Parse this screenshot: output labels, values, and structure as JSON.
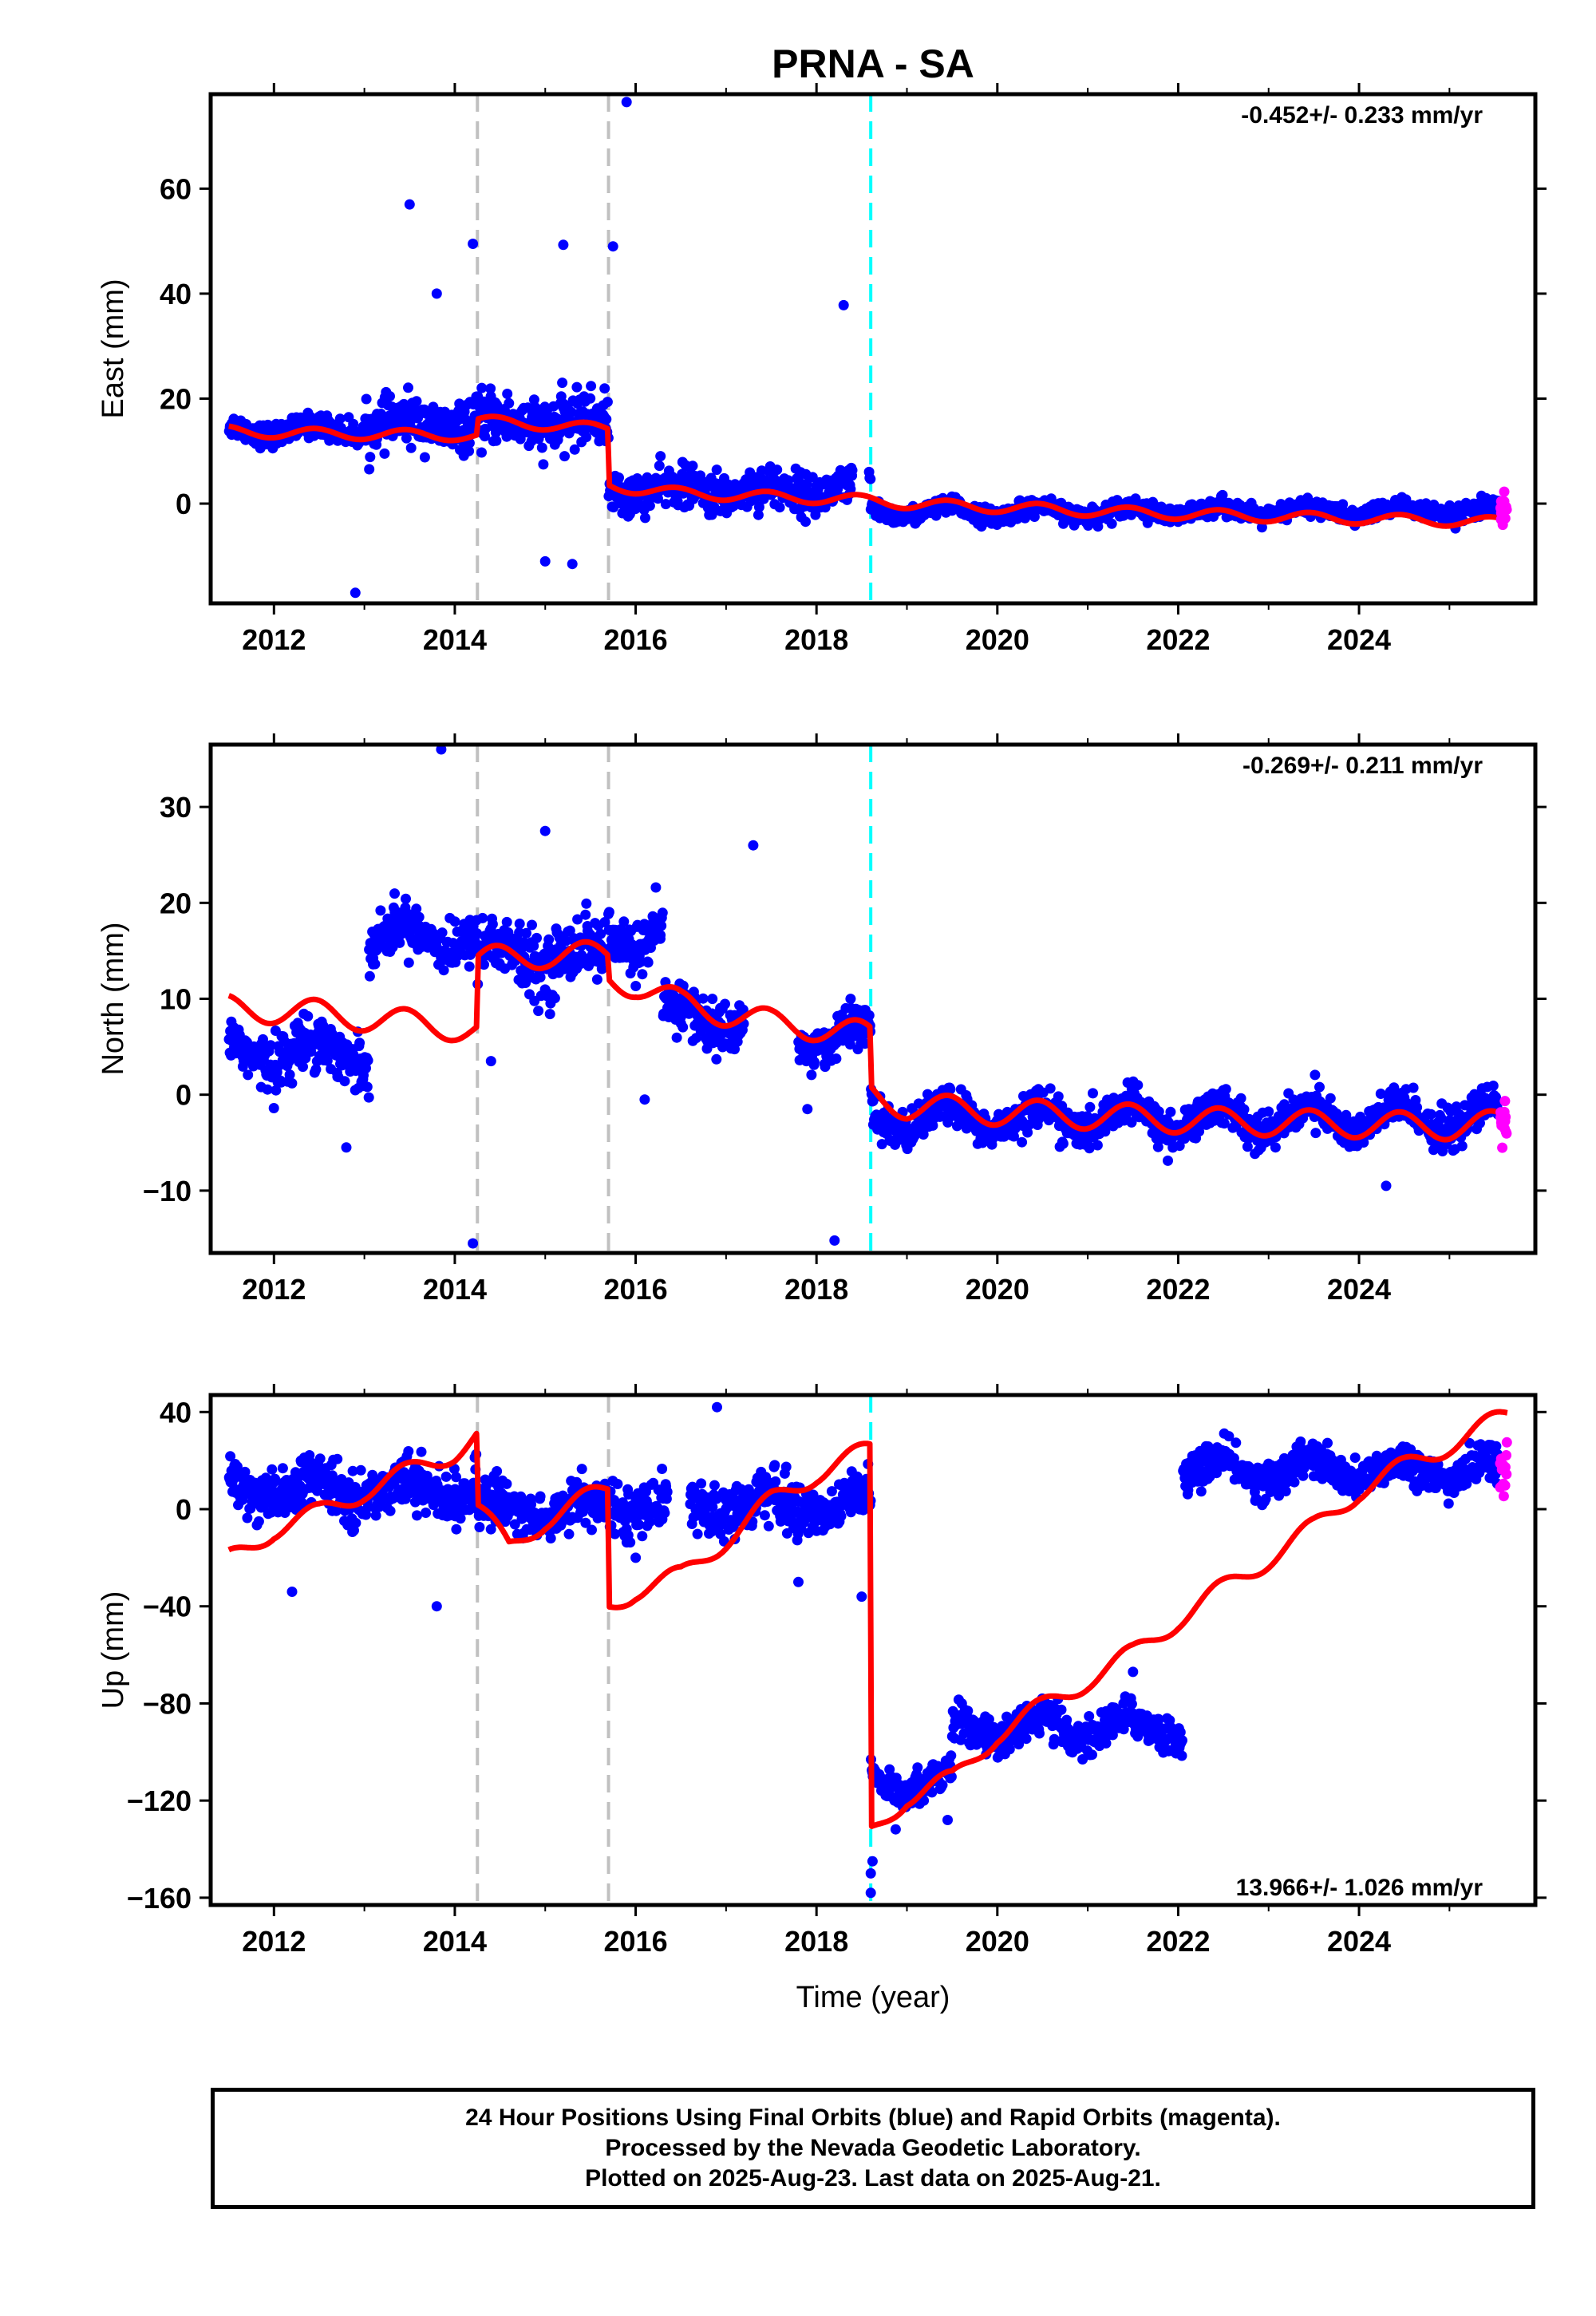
{
  "title": "PRNA - SA",
  "colors": {
    "final_orbits": "#0000ff",
    "rapid_orbits": "#ff00ff",
    "model": "#ff0000",
    "equipment_change": "#c0c0c0",
    "event": "#00ffff"
  },
  "x_axis": {
    "label": "Time (year)",
    "range": [
      2011.3,
      2025.95
    ],
    "ticks": [
      "2012",
      "2014",
      "2016",
      "2018",
      "2020",
      "2022",
      "2024"
    ]
  },
  "markers": {
    "equipment_changes": [
      2014.25,
      2015.7
    ],
    "events": [
      2018.6
    ]
  },
  "chart_data": [
    {
      "type": "scatter",
      "component": "east",
      "ylabel": "East (mm)",
      "ylim": [
        -19,
        78
      ],
      "yticks": [
        "60",
        "40",
        "20",
        "0"
      ],
      "yticks_values": [
        60,
        40,
        20,
        0
      ],
      "rate_text": "-0.452+/- 0.233 mm/yr",
      "rate_position": "top-right",
      "series": [
        {
          "name": "Final Orbits",
          "color": "blue",
          "points": "dense daily positions 2011.5–2025.55"
        },
        {
          "name": "Rapid Orbits",
          "color": "magenta",
          "points": "2025.55–2025.64"
        }
      ],
      "model": [
        [
          2011.5,
          13.8
        ],
        [
          2012.0,
          13.5
        ],
        [
          2012.5,
          13.3
        ],
        [
          2013.0,
          13.2
        ],
        [
          2013.5,
          13.1
        ],
        [
          2014.0,
          13.0
        ],
        [
          2014.24,
          12.8
        ],
        [
          2014.26,
          15.8
        ],
        [
          2015.0,
          15.0
        ],
        [
          2015.69,
          14.2
        ],
        [
          2015.71,
          3.5
        ],
        [
          2016.0,
          2.8
        ],
        [
          2016.5,
          2.0
        ],
        [
          2017.0,
          1.6
        ],
        [
          2017.5,
          1.3
        ],
        [
          2018.0,
          1.0
        ],
        [
          2018.6,
          0.6
        ],
        [
          2019.0,
          0.0
        ],
        [
          2019.5,
          -0.4
        ],
        [
          2020.0,
          -0.7
        ],
        [
          2020.5,
          -1.0
        ],
        [
          2021.0,
          -1.4
        ],
        [
          2021.5,
          -1.7
        ],
        [
          2022.0,
          -2.0
        ],
        [
          2022.5,
          -2.2
        ],
        [
          2023.0,
          -2.5
        ],
        [
          2023.5,
          -2.7
        ],
        [
          2024.0,
          -2.9
        ],
        [
          2024.5,
          -3.1
        ],
        [
          2025.0,
          -3.3
        ],
        [
          2025.64,
          -3.6
        ]
      ],
      "seasonal_amplitude": 1.0,
      "scatter_segments": [
        {
          "start": 2011.5,
          "end": 2013.0,
          "mean": 14.0,
          "scatter": 2.0
        },
        {
          "start": 2013.0,
          "end": 2014.25,
          "mean": 15.0,
          "scatter": 4.0
        },
        {
          "start": 2014.25,
          "end": 2015.7,
          "mean": 15.5,
          "scatter": 4.5
        },
        {
          "start": 2015.7,
          "end": 2018.6,
          "mean": 2.5,
          "scatter": 3.5
        },
        {
          "start": 2018.6,
          "end": 2025.55,
          "mean": -1.5,
          "scatter": 1.5
        }
      ],
      "outliers": [
        [
          2012.9,
          -17
        ],
        [
          2013.5,
          57
        ],
        [
          2013.8,
          40
        ],
        [
          2014.2,
          49.5
        ],
        [
          2015.2,
          49.3
        ],
        [
          2015.75,
          49.0
        ],
        [
          2015.9,
          76.5
        ],
        [
          2018.3,
          37.8
        ],
        [
          2015.0,
          -11
        ],
        [
          2015.3,
          -11.5
        ]
      ],
      "gaps": [
        [
          2018.4,
          2018.58
        ]
      ]
    },
    {
      "type": "scatter",
      "component": "north",
      "ylabel": "North (mm)",
      "ylim": [
        -16.5,
        36.5
      ],
      "yticks": [
        "30",
        "20",
        "10",
        "0",
        "−10"
      ],
      "yticks_values": [
        30,
        20,
        10,
        0,
        -10
      ],
      "rate_text": "-0.269+/- 0.211 mm/yr",
      "rate_position": "top-right",
      "series": [
        {
          "name": "Final Orbits",
          "color": "blue",
          "points": "dense daily positions 2011.5–2025.55"
        },
        {
          "name": "Rapid Orbits",
          "color": "magenta",
          "points": "2025.55–2025.64"
        }
      ],
      "model": [
        [
          2011.5,
          9.0
        ],
        [
          2012.0,
          8.8
        ],
        [
          2012.5,
          8.5
        ],
        [
          2013.0,
          8.0
        ],
        [
          2013.5,
          7.5
        ],
        [
          2014.0,
          7.0
        ],
        [
          2014.24,
          6.7
        ],
        [
          2014.26,
          14.0
        ],
        [
          2015.0,
          14.6
        ],
        [
          2015.69,
          14.5
        ],
        [
          2015.71,
          12.0
        ],
        [
          2016.0,
          11.5
        ],
        [
          2016.5,
          9.5
        ],
        [
          2017.0,
          8.5
        ],
        [
          2017.5,
          7.5
        ],
        [
          2018.0,
          7.0
        ],
        [
          2018.59,
          6.2
        ],
        [
          2018.61,
          0.0
        ],
        [
          2019.0,
          -1.2
        ],
        [
          2019.5,
          -1.5
        ],
        [
          2020.0,
          -1.8
        ],
        [
          2020.5,
          -2.0
        ],
        [
          2021.0,
          -2.2
        ],
        [
          2021.5,
          -2.4
        ],
        [
          2022.0,
          -2.6
        ],
        [
          2022.5,
          -2.8
        ],
        [
          2023.0,
          -2.9
        ],
        [
          2023.5,
          -3.0
        ],
        [
          2024.0,
          -3.1
        ],
        [
          2024.5,
          -3.2
        ],
        [
          2025.0,
          -3.3
        ],
        [
          2025.64,
          -3.0
        ]
      ],
      "seasonal_amplitude": 1.4,
      "scatter_segments": [
        {
          "start": 2011.5,
          "end": 2013.05,
          "mean": 4.5,
          "scatter": 2.5
        },
        {
          "start": 2013.05,
          "end": 2014.25,
          "mean": 16.5,
          "scatter": 2.2
        },
        {
          "start": 2014.25,
          "end": 2015.7,
          "mean": 14.5,
          "scatter": 3.0
        },
        {
          "start": 2015.7,
          "end": 2016.3,
          "mean": 16.5,
          "scatter": 2.5
        },
        {
          "start": 2016.3,
          "end": 2017.2,
          "mean": 8.0,
          "scatter": 2.5
        },
        {
          "start": 2017.8,
          "end": 2018.6,
          "mean": 6.0,
          "scatter": 2.0
        },
        {
          "start": 2018.6,
          "end": 2025.55,
          "mean": -2.5,
          "scatter": 1.8
        }
      ],
      "outliers": [
        [
          2013.85,
          36
        ],
        [
          2014.2,
          -15.5
        ],
        [
          2018.2,
          -15.2
        ],
        [
          2015.0,
          27.5
        ],
        [
          2017.3,
          26.0
        ],
        [
          2012.8,
          -5.5
        ],
        [
          2014.4,
          3.5
        ],
        [
          2016.1,
          -0.5
        ],
        [
          2017.9,
          -1.5
        ],
        [
          2024.3,
          -9.5
        ]
      ],
      "gaps": [
        [
          2017.2,
          2017.8
        ]
      ]
    },
    {
      "type": "scatter",
      "component": "up",
      "ylabel": "Up (mm)",
      "ylim": [
        -163,
        47
      ],
      "yticks": [
        "40",
        "0",
        "−40",
        "−80",
        "−120",
        "−160"
      ],
      "yticks_values": [
        40,
        0,
        -40,
        -80,
        -120,
        -160
      ],
      "rate_text": "13.966+/- 1.026 mm/yr",
      "rate_position": "bottom-right",
      "series": [
        {
          "name": "Final Orbits",
          "color": "blue",
          "points": "dense daily positions 2011.5–2025.55"
        },
        {
          "name": "Rapid Orbits",
          "color": "magenta",
          "points": "2025.55–2025.64"
        }
      ],
      "model": [
        [
          2011.5,
          -21
        ],
        [
          2012.0,
          -8
        ],
        [
          2012.5,
          -2
        ],
        [
          2013.0,
          8
        ],
        [
          2013.5,
          15
        ],
        [
          2014.0,
          24
        ],
        [
          2014.24,
          30
        ],
        [
          2014.26,
          0
        ],
        [
          2014.6,
          -16
        ],
        [
          2015.0,
          -4
        ],
        [
          2015.69,
          8
        ],
        [
          2015.71,
          -40
        ],
        [
          2016.0,
          -33
        ],
        [
          2016.5,
          -28
        ],
        [
          2017.0,
          -12
        ],
        [
          2017.5,
          3
        ],
        [
          2018.0,
          15
        ],
        [
          2018.59,
          24
        ],
        [
          2018.61,
          -133
        ],
        [
          2019.0,
          -118
        ],
        [
          2019.5,
          -112
        ],
        [
          2020.0,
          -92
        ],
        [
          2020.5,
          -82
        ],
        [
          2021.0,
          -70
        ],
        [
          2021.5,
          -60
        ],
        [
          2022.0,
          -45
        ],
        [
          2022.5,
          -33
        ],
        [
          2023.0,
          -20
        ],
        [
          2023.5,
          -8
        ],
        [
          2024.0,
          8
        ],
        [
          2024.5,
          17
        ],
        [
          2025.0,
          27
        ],
        [
          2025.64,
          38
        ]
      ],
      "seasonal_amplitude": 4.5,
      "scatter_segments": [
        {
          "start": 2011.5,
          "end": 2014.25,
          "mean": 8,
          "scatter": 9
        },
        {
          "start": 2014.25,
          "end": 2015.7,
          "mean": 0,
          "scatter": 9
        },
        {
          "start": 2015.7,
          "end": 2018.6,
          "mean": 2,
          "scatter": 9
        },
        {
          "start": 2018.6,
          "end": 2019.5,
          "mean": -112,
          "scatter": 6
        },
        {
          "start": 2019.5,
          "end": 2022.05,
          "mean": -90,
          "scatter": 7
        },
        {
          "start": 2022.05,
          "end": 2025.55,
          "mean": 16,
          "scatter": 7
        }
      ],
      "outliers": [
        [
          2012.2,
          -34
        ],
        [
          2013.8,
          -40
        ],
        [
          2016.0,
          -20
        ],
        [
          2017.8,
          -30
        ],
        [
          2018.5,
          -36
        ],
        [
          2016.9,
          42
        ],
        [
          2018.6,
          -150
        ],
        [
          2018.6,
          -158
        ],
        [
          2018.62,
          -145
        ],
        [
          2019.45,
          -128
        ],
        [
          2021.5,
          -67
        ]
      ],
      "gaps": [
        [
          2016.35,
          2016.6
        ]
      ]
    }
  ],
  "footer": {
    "line1": "24 Hour Positions Using Final Orbits (blue) and Rapid Orbits (magenta).",
    "line2": "Processed by the Nevada Geodetic Laboratory.",
    "line3": "Plotted on 2025-Aug-23. Last data on 2025-Aug-21."
  }
}
